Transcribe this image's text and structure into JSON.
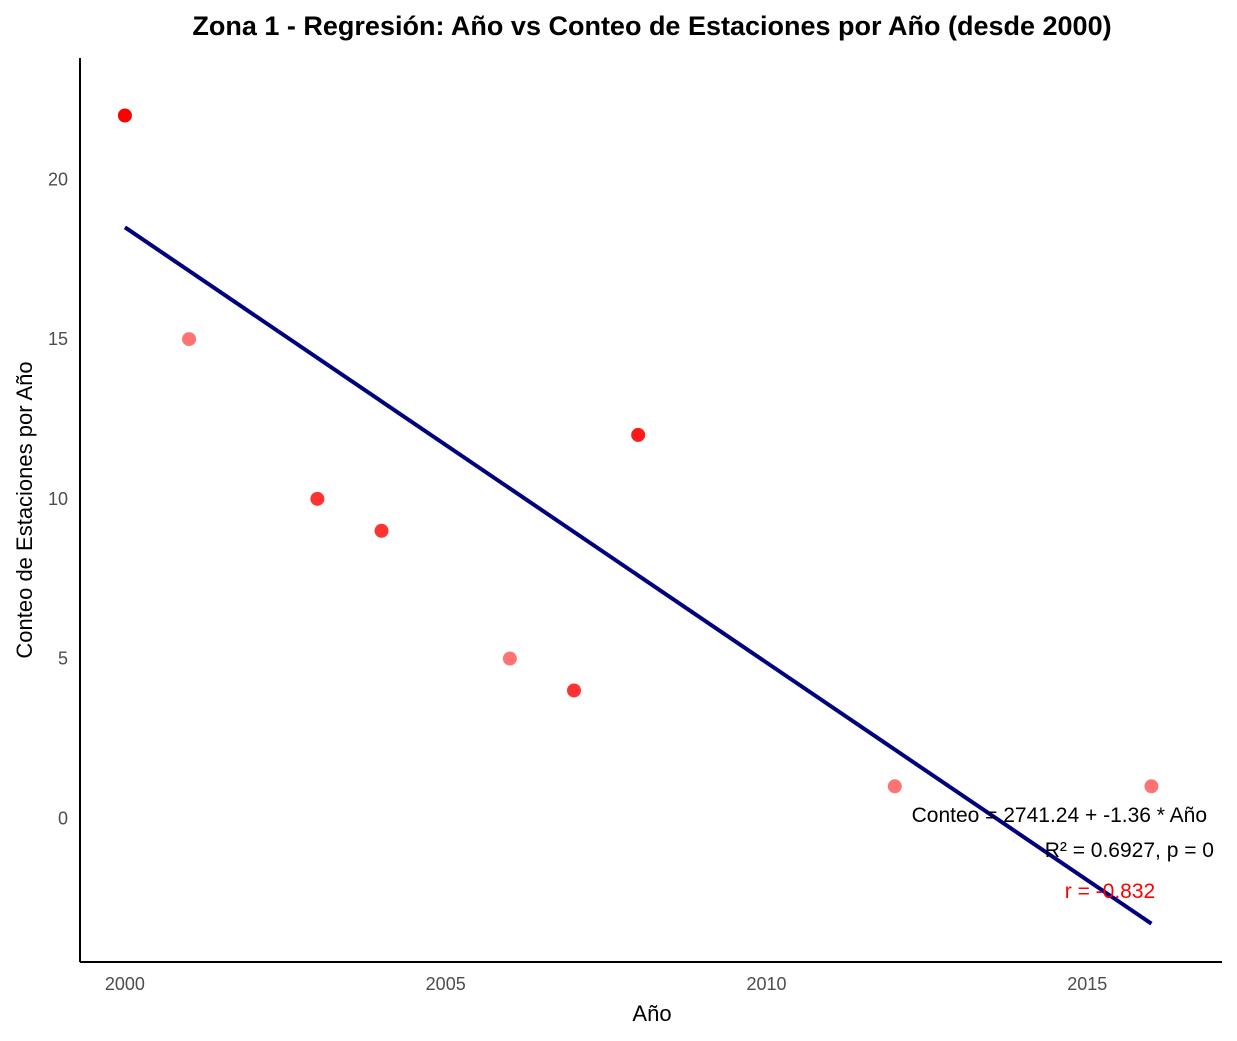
{
  "chart_data": {
    "type": "scatter",
    "title": "Zona 1 - Regresión: Año vs Conteo de Estaciones por Año (desde 2000)",
    "xlabel": "Año",
    "ylabel": "Conteo de Estaciones por Año",
    "xlim": [
      1999.3,
      2017.1
    ],
    "ylim": [
      -4.5,
      23.8
    ],
    "x_ticks": [
      2000,
      2005,
      2010,
      2015
    ],
    "y_ticks": [
      0,
      5,
      10,
      15,
      20
    ],
    "grid": false,
    "points": [
      {
        "x": 2000,
        "y": 22,
        "alpha": 1.0
      },
      {
        "x": 2001,
        "y": 15,
        "alpha": 0.55
      },
      {
        "x": 2003,
        "y": 10,
        "alpha": 0.8
      },
      {
        "x": 2004,
        "y": 9,
        "alpha": 0.8
      },
      {
        "x": 2006,
        "y": 5,
        "alpha": 0.55
      },
      {
        "x": 2007,
        "y": 4,
        "alpha": 0.8
      },
      {
        "x": 2008,
        "y": 12,
        "alpha": 0.9
      },
      {
        "x": 2012,
        "y": 1,
        "alpha": 0.55
      },
      {
        "x": 2016,
        "y": 1,
        "alpha": 0.55
      }
    ],
    "regression_line": {
      "x": [
        2000,
        2016
      ],
      "y": [
        18.5,
        -3.3
      ],
      "color": "#00007f"
    },
    "point_color": "#ff0000",
    "annotations": {
      "equation": "Conteo = 2741.24 + -1.36 * Año",
      "r_squared": "R² = 0.6927, p = 0",
      "r": "r = -0.832",
      "r_color": "#ff0000"
    }
  }
}
